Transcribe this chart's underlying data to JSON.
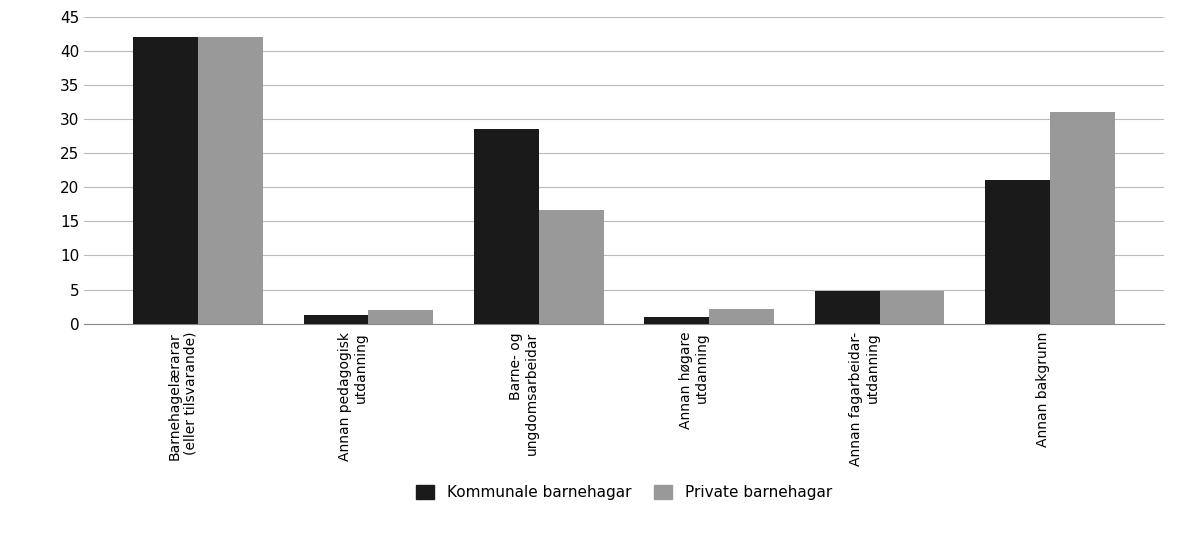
{
  "categories": [
    "Barnehagelærarar\n(eller tilsvarande)",
    "Annan pedagogisk\nutdanning",
    "Barne- og\nungdomsarbeidar",
    "Annan høgare\nutdanning",
    "Annan fagarbeidar-\nutdanning",
    "Annan bakgrunn"
  ],
  "kommunale": [
    42,
    1.3,
    28.5,
    1.0,
    4.8,
    21
  ],
  "private": [
    42,
    2.0,
    16.7,
    2.2,
    4.8,
    31
  ],
  "kommunale_color": "#1a1a1a",
  "private_color": "#999999",
  "legend_kommunale": "Kommunale barnehagar",
  "legend_private": "Private barnehagar",
  "ylim": [
    0,
    45
  ],
  "yticks": [
    0,
    5,
    10,
    15,
    20,
    25,
    30,
    35,
    40,
    45
  ],
  "bar_width": 0.38,
  "grid_color": "#bbbbbb",
  "background_color": "#ffffff",
  "tick_fontsize": 11,
  "label_fontsize": 10,
  "legend_fontsize": 11
}
